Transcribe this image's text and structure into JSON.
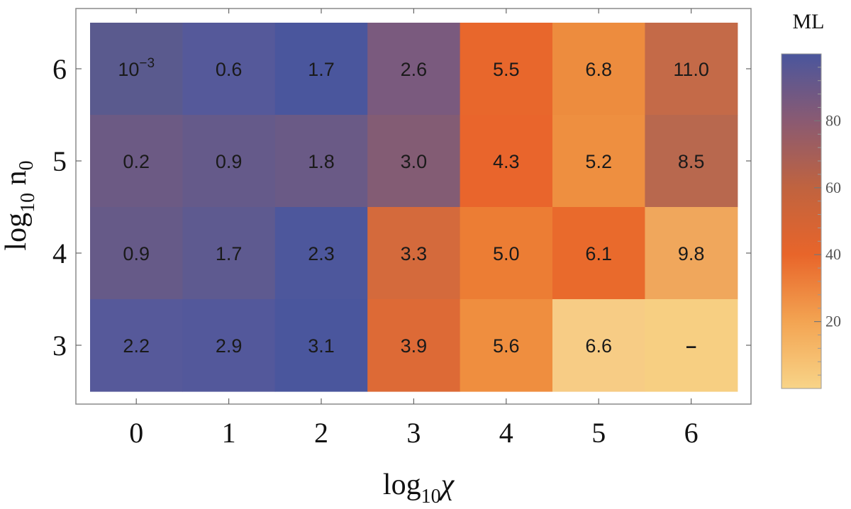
{
  "chart_data": {
    "type": "heatmap",
    "xlabel": "log10 χ",
    "xlabel_parts": {
      "base": "log",
      "sub": "10",
      "var": "χ"
    },
    "ylabel": "log10 n0",
    "ylabel_parts": {
      "base": "log",
      "sub": "10",
      "var": "n",
      "var_sub": "0"
    },
    "x": [
      0,
      1,
      2,
      3,
      4,
      5,
      6
    ],
    "y": [
      6,
      5,
      4,
      3
    ],
    "x_tick_labels": [
      "0",
      "1",
      "2",
      "3",
      "4",
      "5",
      "6"
    ],
    "y_tick_labels": [
      "6",
      "5",
      "4",
      "3"
    ],
    "cell_labels": [
      [
        "10^-3",
        "0.6",
        "1.7",
        "2.6",
        "5.5",
        "6.8",
        "11.0"
      ],
      [
        "0.2",
        "0.9",
        "1.8",
        "3.0",
        "4.3",
        "5.2",
        "8.5"
      ],
      [
        "0.9",
        "1.7",
        "2.3",
        "3.3",
        "5.0",
        "6.1",
        "9.8"
      ],
      [
        "2.2",
        "2.9",
        "3.1",
        "3.9",
        "5.6",
        "6.6",
        "–"
      ]
    ],
    "cell_colors": [
      [
        "#5a5a8e",
        "#55599a",
        "#4a569d",
        "#7a5a7e",
        "#e8672c",
        "#ed8c3e",
        "#c46a48"
      ],
      [
        "#6c5a84",
        "#655a8a",
        "#6a5a86",
        "#835c74",
        "#e9652c",
        "#ee8f40",
        "#b8684e"
      ],
      [
        "#665a88",
        "#5e5a90",
        "#4d579c",
        "#d46a3c",
        "#ec7d34",
        "#e96a2c",
        "#f0a75c"
      ],
      [
        "#56599a",
        "#53589b",
        "#4a569d",
        "#dd6a36",
        "#ef8e3f",
        "#f7cc85",
        "#f7cf82"
      ]
    ],
    "colorbar": {
      "title": "ML",
      "range": [
        0,
        100
      ],
      "ticks": [
        20,
        40,
        60,
        80
      ],
      "tick_labels": [
        "20",
        "40",
        "60",
        "80"
      ],
      "gradient": [
        "#f8d488",
        "#f3a452",
        "#e8652a",
        "#c0633f",
        "#8a5a72",
        "#4a569d"
      ]
    }
  }
}
